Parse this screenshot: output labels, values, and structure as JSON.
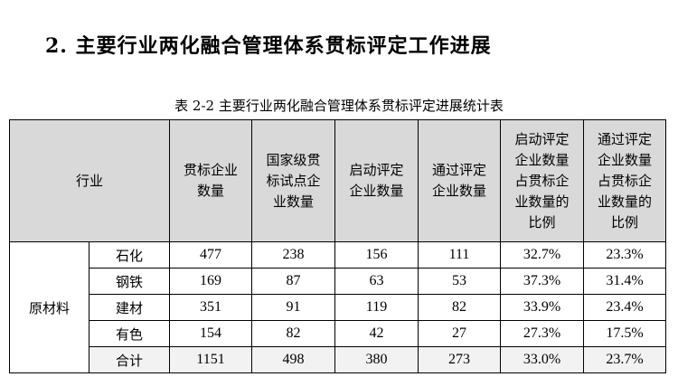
{
  "heading": "2. 主要行业两化融合管理体系贯标评定工作进展",
  "caption": "表 2-2  主要行业两化融合管理体系贯标评定进展统计表",
  "table": {
    "headers": [
      "行业",
      "贯标企业\n数量",
      "国家级贯\n标试点企\n业数量",
      "启动评定\n企业数量",
      "通过评定\n企业数量",
      "启动评定\n企业数量\n占贯标企\n业数量的\n比例",
      "通过评定\n企业数量\n占贯标企\n业数量的\n比例"
    ],
    "group": "原材料",
    "rows": [
      [
        "石化",
        "477",
        "238",
        "156",
        "111",
        "32.7%",
        "23.3%"
      ],
      [
        "钢铁",
        "169",
        "87",
        "63",
        "53",
        "37.3%",
        "31.4%"
      ],
      [
        "建材",
        "351",
        "91",
        "119",
        "82",
        "33.9%",
        "23.4%"
      ],
      [
        "有色",
        "154",
        "82",
        "42",
        "27",
        "27.3%",
        "17.5%"
      ],
      [
        "合计",
        "1151",
        "498",
        "380",
        "273",
        "33.0%",
        "23.7%"
      ]
    ]
  }
}
